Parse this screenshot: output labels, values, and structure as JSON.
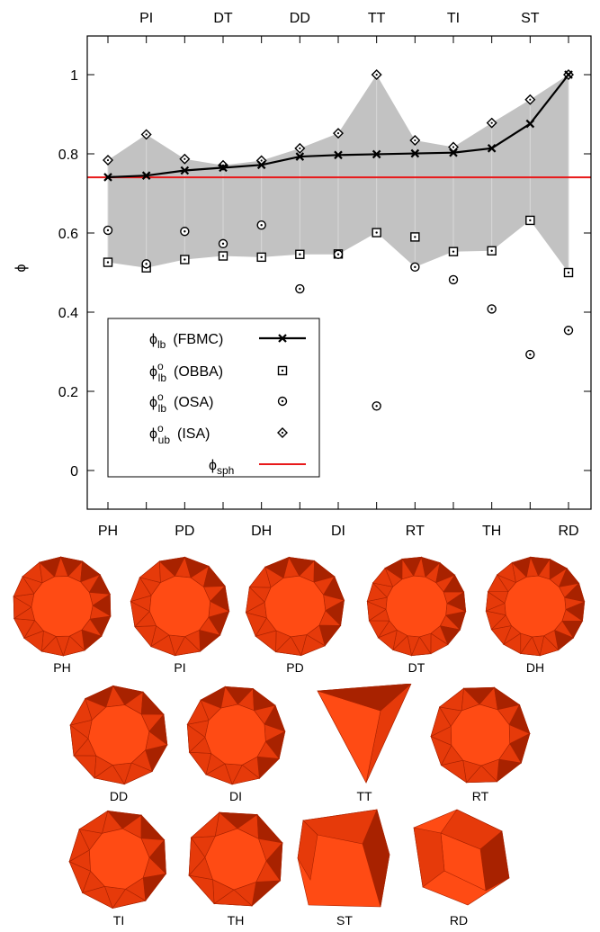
{
  "chart_data": {
    "type": "line",
    "categories": [
      "PH",
      "PI",
      "PD",
      "DT",
      "DH",
      "DD",
      "DI",
      "TT",
      "RT",
      "TI",
      "TH",
      "ST",
      "RD"
    ],
    "ylabel": "ϕ",
    "ylim": [
      -0.1,
      1.1
    ],
    "yticks": [
      "0",
      "0.2",
      "0.4",
      "0.6",
      "0.8",
      "1"
    ],
    "top_axis_labels": [
      "PI",
      "DT",
      "DD",
      "TT",
      "TI",
      "ST"
    ],
    "bottom_axis_labels": [
      "PH",
      "PD",
      "DH",
      "DI",
      "RT",
      "TH",
      "RD"
    ],
    "series": [
      {
        "name": "(FBMC)",
        "symbol": "ϕlb",
        "marker": "cross",
        "line": true,
        "values": [
          0.741,
          0.745,
          0.758,
          0.765,
          0.772,
          0.793,
          0.797,
          0.799,
          0.801,
          0.803,
          0.814,
          0.876,
          1.0
        ]
      },
      {
        "name": "(OBBA)",
        "symbol": "ϕlb^o",
        "marker": "boxed-dot",
        "values": [
          0.526,
          0.512,
          0.533,
          0.542,
          0.539,
          0.546,
          0.547,
          0.601,
          0.59,
          0.553,
          0.555,
          0.632,
          0.5
        ]
      },
      {
        "name": "(OSA)",
        "symbol": "ϕlb^o",
        "marker": "circled-dot",
        "values": [
          0.607,
          0.522,
          0.604,
          0.573,
          0.62,
          0.459,
          0.546,
          0.163,
          0.514,
          0.482,
          0.408,
          0.293,
          0.354
        ]
      },
      {
        "name": "(ISA)",
        "symbol": "ϕub^o",
        "marker": "diamond-dot",
        "values": [
          0.784,
          0.849,
          0.787,
          0.771,
          0.783,
          0.814,
          0.852,
          1.0,
          0.834,
          0.817,
          0.878,
          0.937,
          1.0
        ]
      }
    ],
    "reference_line": {
      "name": "ϕsph",
      "value": 0.7405,
      "color": "#e8191a"
    },
    "band_color": "#c2c2c2",
    "legend": {
      "placement": "bottom-left",
      "entries": [
        {
          "base": "ϕ",
          "sup": "",
          "sub": "lb",
          "note": "(FBMC)"
        },
        {
          "base": "ϕ",
          "sup": "o",
          "sub": "lb",
          "note": "(OBBA)"
        },
        {
          "base": "ϕ",
          "sup": "o",
          "sub": "lb",
          "note": "(OSA)"
        },
        {
          "base": "ϕ",
          "sup": "o",
          "sub": "ub",
          "note": "(ISA)"
        },
        {
          "base": "ϕ",
          "sup": "",
          "sub": "sph",
          "note": ""
        }
      ]
    }
  },
  "shapes": [
    {
      "label": "PH",
      "kind": "round14"
    },
    {
      "label": "PI",
      "kind": "round12"
    },
    {
      "label": "PD",
      "kind": "round12b"
    },
    {
      "label": "DT",
      "kind": "round16"
    },
    {
      "label": "DH",
      "kind": "round16b"
    },
    {
      "label": "DD",
      "kind": "round10"
    },
    {
      "label": "DI",
      "kind": "round11"
    },
    {
      "label": "TT",
      "kind": "tetra"
    },
    {
      "label": "RT",
      "kind": "round10b"
    },
    {
      "label": "TI",
      "kind": "round9"
    },
    {
      "label": "TH",
      "kind": "round8"
    },
    {
      "label": "ST",
      "kind": "trapez"
    },
    {
      "label": "RD",
      "kind": "rhombic"
    }
  ],
  "colors": {
    "face_light": "#ff4b14",
    "face_mid": "#e63a0a",
    "face_dark": "#a82200",
    "face_darker": "#8a1900"
  }
}
